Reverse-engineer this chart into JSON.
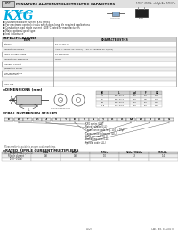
{
  "bg_color": "#ffffff",
  "header_text": "MINIATURE ALUMINUM ELECTROLYTIC CAPACITORS",
  "header_right": "105°C 4000h, <High Re. 105°C>",
  "series_name": "KXG",
  "series_sub": "Series",
  "bullets": [
    "■ Guaranteed lower current KXG series",
    "■ For electronic control circuits which does long life required applications",
    "■ Conduction load ripple current : 105°C rated by manufacturers",
    "■ Major optional good type",
    "■ low inductance"
  ],
  "spec_title": "◆SPECIFICATIONS",
  "dim_title": "◆DIMENSIONS (mm)",
  "pn_title": "◆PART NUMBERING SYSTEM",
  "ripple_title": "◆RATED RIPPLE CURRENT MULTIPLIERS",
  "footer_left": "(1/2)",
  "footer_right": "CAT. No. E-KXG II",
  "accent_color": "#00aadd",
  "header_bg": "#e0e0e0",
  "table_header_bg": "#d0d0d0",
  "table_alt_bg": "#eeeeee",
  "spec_items": [
    "Category",
    "Capacitance Range",
    "Rated Voltage Range",
    "Capacitance Tolerance",
    "Leakage Current",
    "Dissipation Factor\n(tanδ)",
    "Low Temperature\nCharacteristics",
    "Endurance",
    "Shelf Life"
  ],
  "spec_vals": [
    "85°C, 105°C",
    "+25°C, 120Hz, 20°C(rms)   +25°C, 100kHz, 20°C(rms)",
    "10 to 100Vdc",
    "±20%",
    "",
    "",
    "",
    "",
    ""
  ],
  "pn_chars": [
    "E",
    "K",
    "X",
    "G",
    "4",
    "5",
    "1",
    "E",
    "S",
    "S",
    "1",
    "0",
    "0",
    "M",
    "K",
    "2",
    "0",
    "S"
  ],
  "pn_labels": [
    "KXG series (LLL)",
    "Rated voltage (LLL)",
    "Capacitance code (e.g. 100 = 10μF)",
    "Capacitance tolerance (LLL)",
    "Case size code (LLL)",
    "Packaging code (LLL)",
    "Special code (LLL)"
  ],
  "pn_box_indices": [
    1,
    4,
    7,
    10,
    13,
    15,
    17
  ],
  "ripple_freq": [
    "Frequency",
    "50Hz",
    "60Hz",
    "120Hz",
    "1kHz~10kHz",
    "100kHz"
  ],
  "ripple_row1": [
    "Ripple current",
    "0.8",
    "0.8",
    "1.0",
    "1.3",
    "1.4"
  ],
  "ripple_row2": [
    "(10V~100V)",
    "",
    "",
    "",
    "",
    ""
  ]
}
